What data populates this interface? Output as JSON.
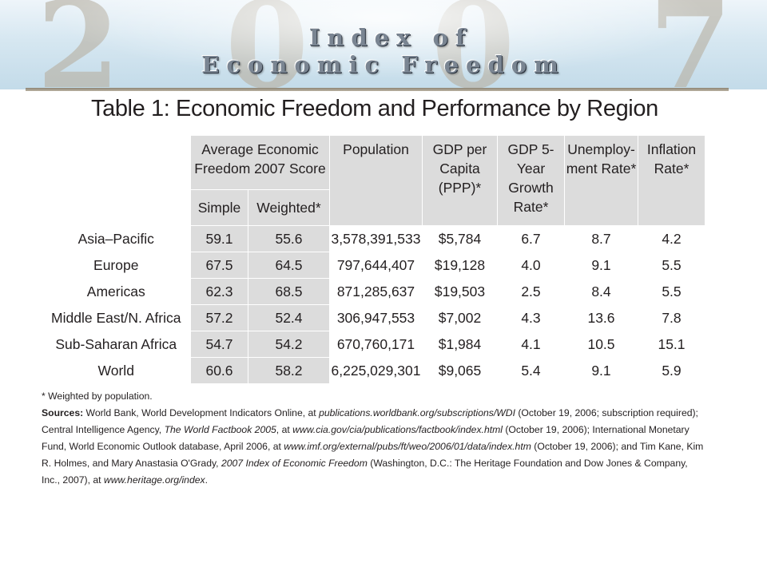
{
  "banner": {
    "year_digits": [
      "2",
      "0",
      "0",
      "7"
    ],
    "title_line1": "Index of",
    "title_line2": "Economic Freedom"
  },
  "table": {
    "title": "Table 1: Economic Freedom and Performance by Region",
    "headers": {
      "score_group": "Average Economic Freedom 2007 Score",
      "simple": "Simple",
      "weighted": "Weighted*",
      "population": "Population",
      "gdp_per_capita": "GDP per Capita (PPP)*",
      "gdp_growth": "GDP 5-Year Growth Rate*",
      "unemployment": "Unemploy- ment Rate*",
      "inflation": "Inflation Rate*"
    },
    "rows": [
      {
        "region": "Asia–Pacific",
        "simple": "59.1",
        "weighted": "55.6",
        "population": "3,578,391,533",
        "gdp": "$5,784",
        "growth": "6.7",
        "unemployment": "8.7",
        "inflation": "4.2"
      },
      {
        "region": "Europe",
        "simple": "67.5",
        "weighted": "64.5",
        "population": "797,644,407",
        "gdp": "$19,128",
        "growth": "4.0",
        "unemployment": "9.1",
        "inflation": "5.5"
      },
      {
        "region": "Americas",
        "simple": "62.3",
        "weighted": "68.5",
        "population": "871,285,637",
        "gdp": "$19,503",
        "growth": "2.5",
        "unemployment": "8.4",
        "inflation": "5.5"
      },
      {
        "region": "Middle East/N. Africa",
        "simple": "57.2",
        "weighted": "52.4",
        "population": "306,947,553",
        "gdp": "$7,002",
        "growth": "4.3",
        "unemployment": "13.6",
        "inflation": "7.8"
      },
      {
        "region": "Sub-Saharan Africa",
        "simple": "54.7",
        "weighted": "54.2",
        "population": "670,760,171",
        "gdp": "$1,984",
        "growth": "4.1",
        "unemployment": "10.5",
        "inflation": "15.1"
      },
      {
        "region": "World",
        "simple": "60.6",
        "weighted": "58.2",
        "population": "6,225,029,301",
        "gdp": "$9,065",
        "growth": "5.4",
        "unemployment": "9.1",
        "inflation": "5.9"
      }
    ]
  },
  "notes": {
    "footnote": "* Weighted by population.",
    "sources_label": "Sources:",
    "sources_segments": [
      {
        "text": " World Bank, World Development Indicators Online, at ",
        "italic": false
      },
      {
        "text": "publications.worldbank.org/subscriptions/WDI",
        "italic": true
      },
      {
        "text": " (October 19, 2006; subscription required); Central Intelligence Agency, ",
        "italic": false
      },
      {
        "text": "The World Factbook 2005",
        "italic": true
      },
      {
        "text": ", at ",
        "italic": false
      },
      {
        "text": "www.cia.gov/cia/publications/factbook/index.html",
        "italic": true
      },
      {
        "text": " (October 19, 2006); International Monetary Fund, World Economic Outlook database, April 2006, at ",
        "italic": false
      },
      {
        "text": "www.imf.org/external/pubs/ft/weo/2006/01/data/index.htm",
        "italic": true
      },
      {
        "text": " (October 19, 2006); and Tim Kane, Kim R. Holmes, and Mary Anastasia O'Grady, ",
        "italic": false
      },
      {
        "text": "2007 Index of Economic Freedom",
        "italic": true
      },
      {
        "text": " (Washington, D.C.: The Heritage Foundation and Dow Jones & Company, Inc., 2007), at ",
        "italic": false
      },
      {
        "text": "www.heritage.org/index",
        "italic": true
      },
      {
        "text": ".",
        "italic": false
      }
    ]
  }
}
